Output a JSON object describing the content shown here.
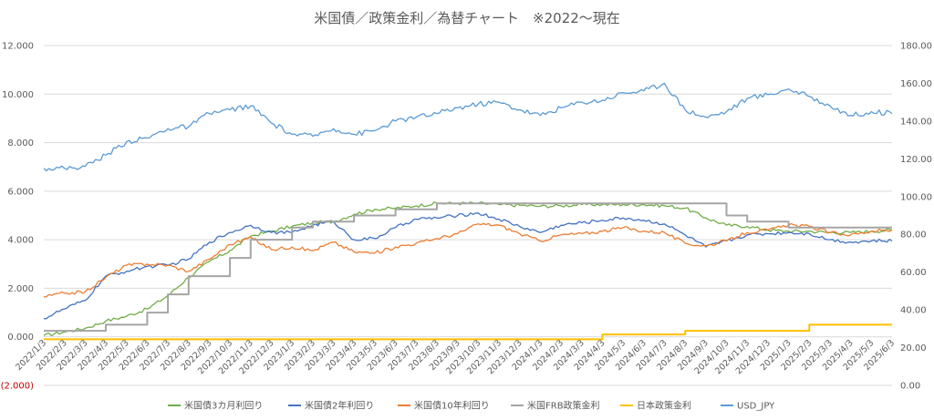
{
  "chart_data": {
    "type": "line",
    "title": "米国債／政策金利／為替チャート　※2022～現在",
    "xlabel": "",
    "y_left": {
      "range": [
        -2,
        12
      ],
      "ticks": [
        "(2.000)",
        "0.000",
        "2.000",
        "4.000",
        "6.000",
        "8.000",
        "10.000",
        "12.000"
      ]
    },
    "y_right": {
      "range": [
        0,
        180
      ],
      "ticks": [
        "0.00",
        "20.00",
        "40.00",
        "60.00",
        "80.00",
        "100.00",
        "120.00",
        "140.00",
        "160.00",
        "180.00"
      ]
    },
    "x_ticks": [
      "2022/1/3",
      "2022/2/3",
      "2022/3/3",
      "2022/4/3",
      "2022/5/3",
      "2022/6/3",
      "2022/7/3",
      "2022/8/3",
      "2022/9/3",
      "2022/10/3",
      "2022/11/3",
      "2022/12/3",
      "2023/1/3",
      "2023/2/3",
      "2023/3/3",
      "2023/4/3",
      "2023/5/3",
      "2023/6/3",
      "2023/7/3",
      "2023/8/3",
      "2023/9/3",
      "2023/10/3",
      "2023/11/3",
      "2023/12/3",
      "2024/1/3",
      "2024/2/3",
      "2024/3/3",
      "2024/4/3",
      "2024/5/3",
      "2024/6/3",
      "2024/7/3",
      "2024/8/3",
      "2024/9/3",
      "2024/10/3",
      "2024/11/3",
      "2024/12/3",
      "2025/1/3",
      "2025/2/3",
      "2025/3/3",
      "2025/4/3",
      "2025/5/3",
      "2025/6/3"
    ],
    "series": [
      {
        "name": "米国債3カ月利回り",
        "color": "#70ad47",
        "axis": "left",
        "values": [
          0.05,
          0.2,
          0.35,
          0.65,
          0.85,
          1.15,
          1.7,
          2.45,
          3.1,
          3.55,
          4.15,
          4.35,
          4.55,
          4.7,
          4.75,
          5.05,
          5.25,
          5.3,
          5.4,
          5.5,
          5.5,
          5.5,
          5.45,
          5.42,
          5.38,
          5.4,
          5.45,
          5.45,
          5.45,
          5.45,
          5.4,
          5.3,
          4.9,
          4.6,
          4.55,
          4.4,
          4.35,
          4.35,
          4.3,
          4.3,
          4.35,
          4.4
        ]
      },
      {
        "name": "米国債2年利回り",
        "color": "#4472c4",
        "axis": "left",
        "values": [
          0.75,
          1.15,
          1.5,
          2.5,
          2.7,
          2.9,
          2.95,
          3.2,
          3.9,
          4.3,
          4.6,
          4.3,
          4.3,
          4.6,
          4.75,
          4.0,
          4.05,
          4.5,
          4.85,
          4.9,
          5.0,
          5.1,
          4.85,
          4.55,
          4.3,
          4.6,
          4.7,
          4.8,
          4.9,
          4.8,
          4.65,
          4.2,
          3.7,
          3.95,
          4.2,
          4.25,
          4.3,
          4.25,
          4.0,
          3.9,
          3.95,
          3.95
        ]
      },
      {
        "name": "米国債10年利回り",
        "color": "#ed7d31",
        "axis": "left",
        "values": [
          1.65,
          1.8,
          1.85,
          2.45,
          2.95,
          3.0,
          2.95,
          2.7,
          3.2,
          3.8,
          4.1,
          3.6,
          3.7,
          3.55,
          3.9,
          3.5,
          3.45,
          3.7,
          3.85,
          4.05,
          4.25,
          4.65,
          4.6,
          4.25,
          3.95,
          4.2,
          4.25,
          4.35,
          4.5,
          4.35,
          4.3,
          3.85,
          3.75,
          3.95,
          4.3,
          4.4,
          4.6,
          4.55,
          4.3,
          4.2,
          4.35,
          4.4
        ]
      },
      {
        "name": "米国FRB政策金利",
        "color": "#a5a5a5",
        "axis": "left",
        "values": [
          0.25,
          0.25,
          0.25,
          0.5,
          0.5,
          1.0,
          1.75,
          2.5,
          2.5,
          3.25,
          4.0,
          4.0,
          4.5,
          4.75,
          4.75,
          5.0,
          5.0,
          5.25,
          5.25,
          5.5,
          5.5,
          5.5,
          5.5,
          5.5,
          5.5,
          5.5,
          5.5,
          5.5,
          5.5,
          5.5,
          5.5,
          5.5,
          5.5,
          5.0,
          4.75,
          4.75,
          4.5,
          4.5,
          4.5,
          4.5,
          4.5,
          4.5
        ]
      },
      {
        "name": "日本政策金利",
        "color": "#ffc000",
        "axis": "left",
        "values": [
          -0.1,
          -0.1,
          -0.1,
          -0.1,
          -0.1,
          -0.1,
          -0.1,
          -0.1,
          -0.1,
          -0.1,
          -0.1,
          -0.1,
          -0.1,
          -0.1,
          -0.1,
          -0.1,
          -0.1,
          -0.1,
          -0.1,
          -0.1,
          -0.1,
          -0.1,
          -0.1,
          -0.1,
          -0.1,
          -0.1,
          -0.1,
          0.1,
          0.1,
          0.1,
          0.1,
          0.25,
          0.25,
          0.25,
          0.25,
          0.25,
          0.25,
          0.5,
          0.5,
          0.5,
          0.5,
          0.5
        ]
      },
      {
        "name": "USD_JPY",
        "color": "#5b9bd5",
        "axis": "right",
        "values": [
          115,
          115,
          116,
          122,
          129,
          131,
          136,
          137,
          144,
          146,
          148,
          139,
          133,
          132,
          136,
          133,
          135,
          140,
          142,
          144,
          147,
          149,
          150,
          146,
          143,
          147,
          150,
          151,
          155,
          156,
          160,
          146,
          142,
          145,
          152,
          154,
          157,
          153,
          148,
          143,
          145,
          144
        ]
      }
    ],
    "legend_position": "bottom",
    "grid": true
  }
}
